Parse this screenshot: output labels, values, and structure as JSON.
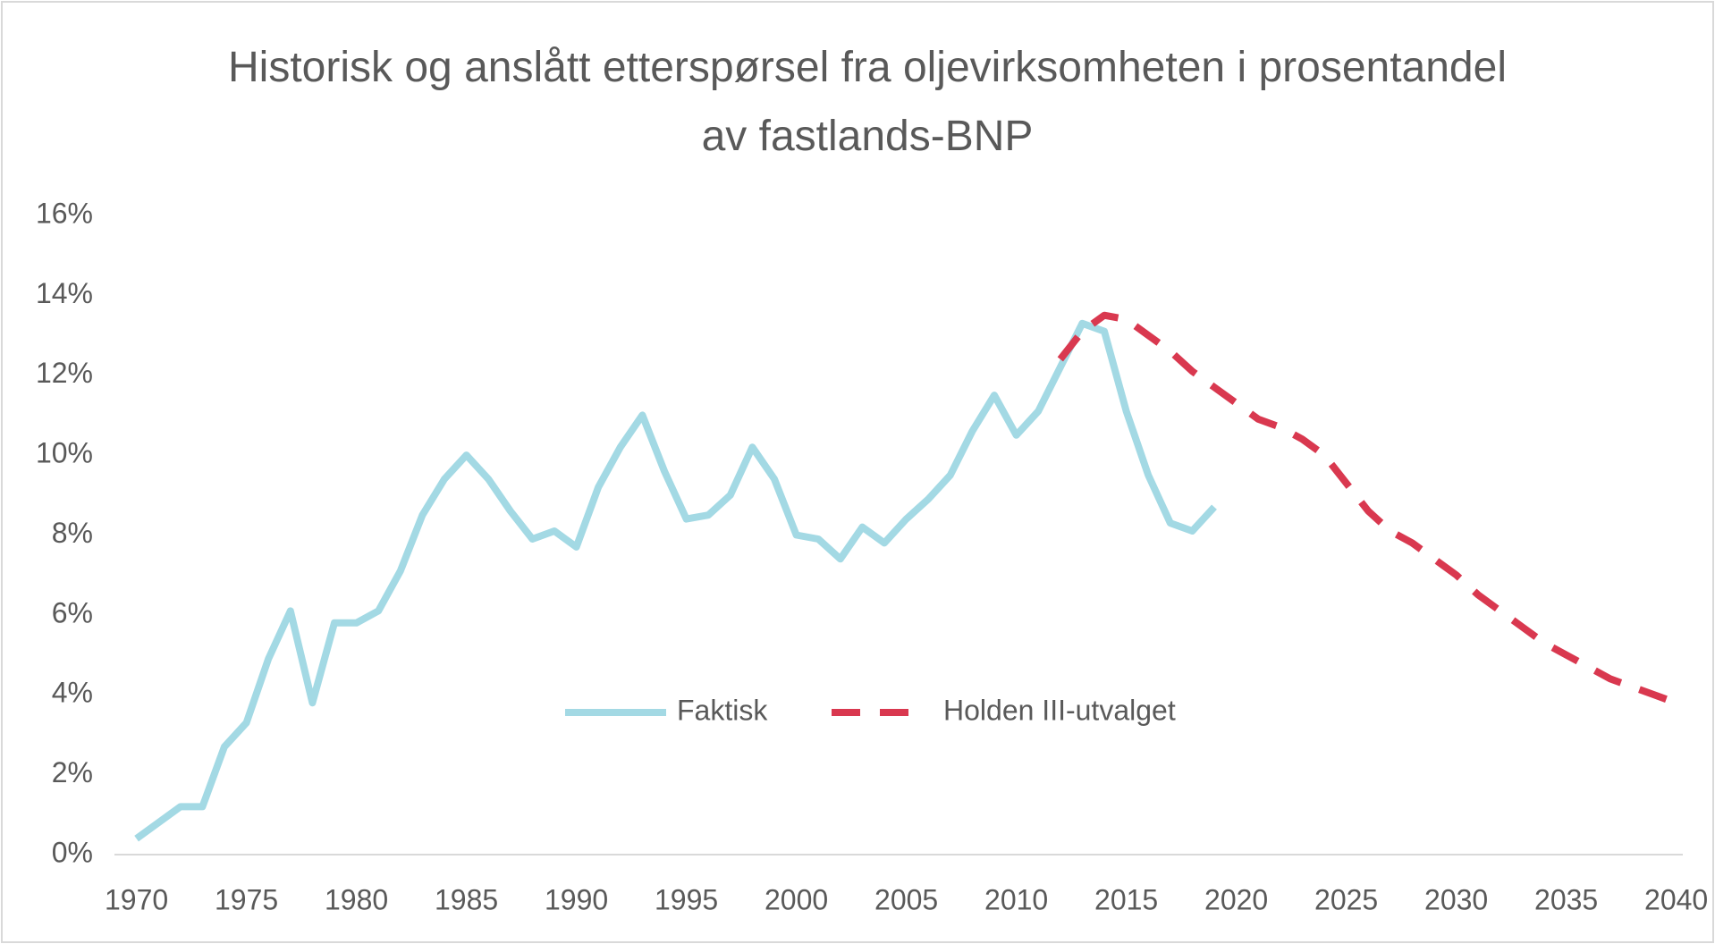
{
  "chart_data": {
    "type": "line",
    "title": "Historisk og anslått etterspørsel fra oljevirksomheten i prosentandel av fastlands-BNP",
    "x": [
      1970,
      1971,
      1972,
      1973,
      1974,
      1975,
      1976,
      1977,
      1978,
      1979,
      1980,
      1981,
      1982,
      1983,
      1984,
      1985,
      1986,
      1987,
      1988,
      1989,
      1990,
      1991,
      1992,
      1993,
      1994,
      1995,
      1996,
      1997,
      1998,
      1999,
      2000,
      2001,
      2002,
      2003,
      2004,
      2005,
      2006,
      2007,
      2008,
      2009,
      2010,
      2011,
      2012,
      2013,
      2014,
      2015,
      2016,
      2017,
      2018,
      2019,
      2020,
      2021,
      2022,
      2023,
      2024,
      2025,
      2026,
      2027,
      2028,
      2029,
      2030,
      2031,
      2032,
      2033,
      2034,
      2035,
      2036,
      2037,
      2038,
      2039,
      2040
    ],
    "series": [
      {
        "name": "Faktisk",
        "color": "#a3d9e4",
        "dashed": false,
        "values": [
          0.4,
          0.8,
          1.2,
          1.2,
          2.7,
          3.3,
          4.9,
          6.1,
          3.8,
          5.8,
          5.8,
          6.1,
          7.1,
          8.5,
          9.4,
          10.0,
          9.4,
          8.6,
          7.9,
          8.1,
          7.7,
          9.2,
          10.2,
          11.0,
          9.6,
          8.4,
          8.5,
          9.0,
          10.2,
          9.4,
          8.0,
          7.9,
          7.4,
          8.2,
          7.8,
          8.4,
          8.9,
          9.5,
          10.6,
          11.5,
          10.5,
          11.1,
          12.2,
          13.3,
          13.1,
          11.1,
          9.5,
          8.3,
          8.1,
          8.7,
          null,
          null,
          null,
          null,
          null,
          null,
          null,
          null,
          null,
          null,
          null,
          null,
          null,
          null,
          null,
          null,
          null,
          null,
          null,
          null,
          null
        ]
      },
      {
        "name": "Holden III-utvalget",
        "color": "#d9384f",
        "dashed": true,
        "values": [
          null,
          null,
          null,
          null,
          null,
          null,
          null,
          null,
          null,
          null,
          null,
          null,
          null,
          null,
          null,
          null,
          null,
          null,
          null,
          null,
          null,
          null,
          null,
          null,
          null,
          null,
          null,
          null,
          null,
          null,
          null,
          null,
          null,
          null,
          null,
          null,
          null,
          null,
          null,
          null,
          null,
          null,
          12.4,
          13.1,
          13.5,
          13.4,
          13.0,
          12.6,
          12.1,
          11.7,
          11.3,
          10.9,
          10.7,
          10.4,
          10.0,
          9.3,
          8.6,
          8.1,
          7.8,
          7.4,
          7.0,
          6.5,
          6.1,
          5.7,
          5.3,
          5.0,
          4.7,
          4.4,
          4.2,
          4.0,
          3.8
        ]
      }
    ],
    "xlim": [
      1969,
      2040.3
    ],
    "xticks": [
      1970,
      1975,
      1980,
      1985,
      1990,
      1995,
      2000,
      2005,
      2010,
      2015,
      2020,
      2025,
      2030,
      2035,
      2040
    ],
    "ylim": [
      0,
      16
    ],
    "yticks": [
      {
        "value": 0,
        "label": "0%"
      },
      {
        "value": 2,
        "label": "2%"
      },
      {
        "value": 4,
        "label": "4%"
      },
      {
        "value": 6,
        "label": "6%"
      },
      {
        "value": 8,
        "label": "8%"
      },
      {
        "value": 10,
        "label": "10%"
      },
      {
        "value": 12,
        "label": "12%"
      },
      {
        "value": 14,
        "label": "14%"
      },
      {
        "value": 16,
        "label": "16%"
      }
    ],
    "grid": false,
    "legend": "inside-bottom"
  }
}
